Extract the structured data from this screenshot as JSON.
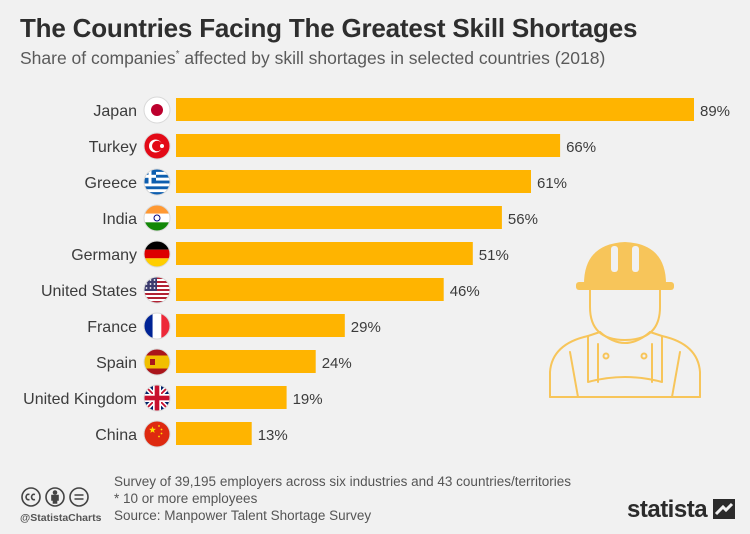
{
  "header": {
    "title": "The Countries Facing The Greatest Skill Shortages",
    "subtitle_before": "Share of companies",
    "subtitle_mark": "*",
    "subtitle_after": " affected by skill shortages in selected countries (2018)"
  },
  "chart_data": {
    "type": "bar",
    "orientation": "horizontal",
    "categories": [
      "Japan",
      "Turkey",
      "Greece",
      "India",
      "Germany",
      "United States",
      "France",
      "Spain",
      "United Kingdom",
      "China"
    ],
    "values": [
      89,
      66,
      61,
      56,
      51,
      46,
      29,
      24,
      19,
      13
    ],
    "value_labels": [
      "89%",
      "66%",
      "61%",
      "56%",
      "51%",
      "46%",
      "29%",
      "24%",
      "19%",
      "13%"
    ],
    "flags": [
      "japan-flag-icon",
      "turkey-flag-icon",
      "greece-flag-icon",
      "india-flag-icon",
      "germany-flag-icon",
      "united-states-flag-icon",
      "france-flag-icon",
      "spain-flag-icon",
      "united-kingdom-flag-icon",
      "china-flag-icon"
    ],
    "bar_color": "#ffb400",
    "grid": false
  },
  "footer": {
    "survey_note": "Survey of 39,195 employers across six industries and 43 countries/territories",
    "footnote": "* 10 or more employees",
    "source": "Source: Manpower Talent Shortage Survey"
  },
  "branding": {
    "handle": "@StatistaCharts",
    "logo_text": "statista"
  },
  "colors": {
    "background": "#f1f1f1",
    "bar": "#ffb400",
    "illustration": "#f7c55a"
  }
}
